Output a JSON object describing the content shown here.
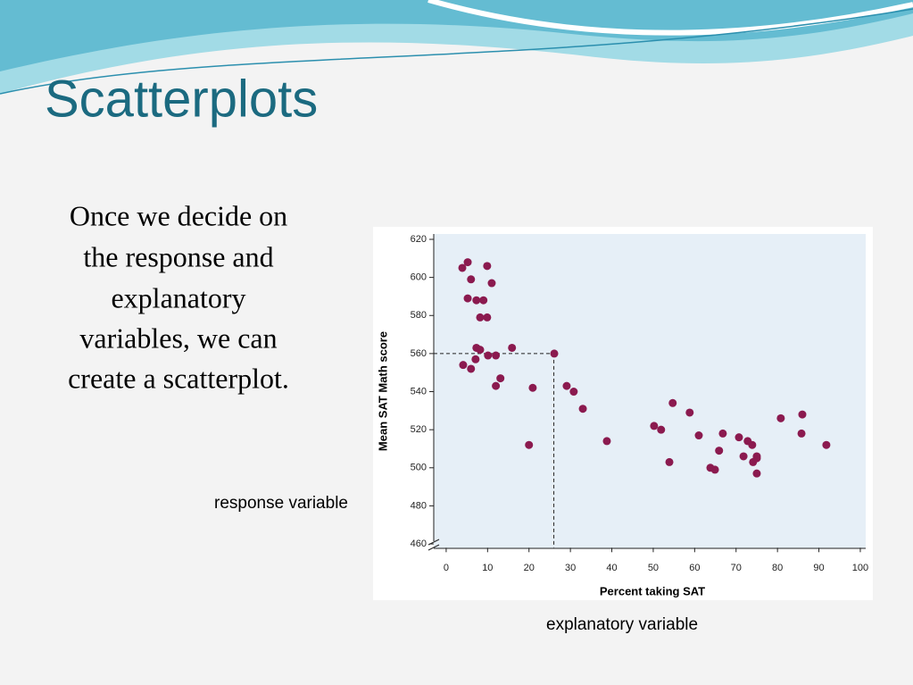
{
  "slide": {
    "title": "Scatterplots",
    "body": [
      "Once we decide on",
      "the response and",
      "explanatory",
      "variables, we can",
      "create a scatterplot."
    ],
    "response_note": "response variable",
    "explanatory_note": "explanatory variable"
  },
  "chart_data": {
    "type": "scatter",
    "x_label": "Percent taking SAT",
    "y_label": "Mean SAT Math score",
    "color": "#8b1a4f",
    "x": [
      3.9,
      5.2,
      6,
      9.9,
      11,
      5.2,
      7.3,
      9,
      8.2,
      9.9,
      7.3,
      8.2,
      15.9,
      7.1,
      10.1,
      12,
      4.1,
      6,
      26.1,
      13.1,
      12,
      20.9,
      29.1,
      30.8,
      33,
      20,
      38.8,
      50.2,
      51.9,
      54.7,
      58.8,
      61,
      53.9,
      66.8,
      65.9,
      63.8,
      64.9,
      70.7,
      72.8,
      73.9,
      71.8,
      75,
      74.1,
      75,
      75,
      80.8,
      86,
      85.8,
      91.8
    ],
    "values": [
      605,
      608,
      599,
      606,
      597,
      589,
      588,
      588,
      579,
      579,
      563,
      562,
      563,
      557,
      559,
      559,
      554,
      552,
      560,
      547,
      543,
      542,
      543,
      540,
      531,
      512,
      514,
      522,
      520,
      534,
      529,
      517,
      503,
      518,
      509,
      500,
      499,
      516,
      514,
      512,
      506,
      506,
      503,
      505,
      497,
      526,
      528,
      518,
      512
    ],
    "highlight": {
      "x": 26,
      "y": 560
    },
    "xlim": [
      -3,
      101
    ],
    "xticks": [
      0,
      10,
      20,
      30,
      40,
      50,
      60,
      70,
      80,
      90,
      100
    ],
    "ylim": [
      458,
      623
    ],
    "yticks": [
      460,
      480,
      500,
      520,
      540,
      560,
      580,
      600,
      620
    ]
  }
}
